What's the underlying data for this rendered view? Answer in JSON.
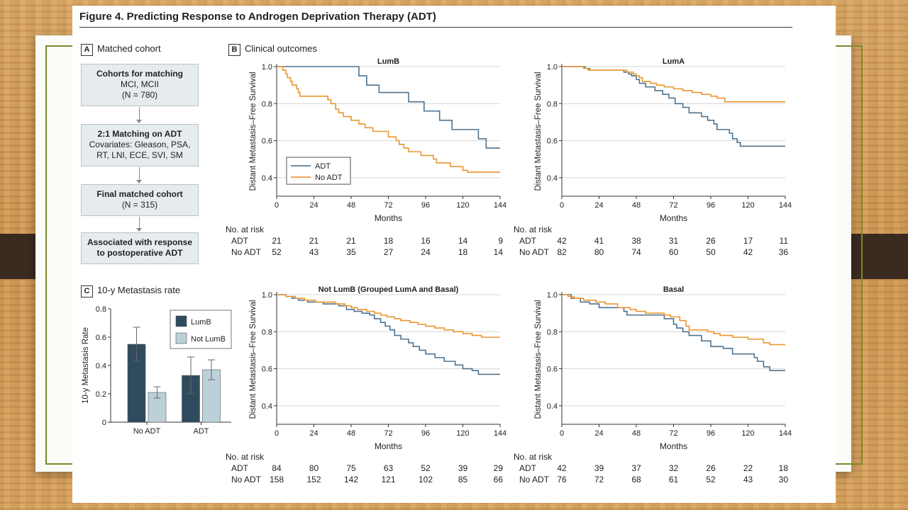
{
  "figure_title": "Figure 4. Predicting Response to Androgen Deprivation Therapy (ADT)",
  "panel_a": {
    "letter": "A",
    "label": "Matched cohort",
    "boxes": [
      {
        "title": "Cohorts for matching",
        "lines": [
          "MCI, MCII",
          "(N = 780)"
        ]
      },
      {
        "title": "2:1 Matching on ADT",
        "lines": [
          "Covariates:  Gleason, PSA,",
          "RT, LNI, ECE, SVI, SM"
        ]
      },
      {
        "title": "Final matched cohort",
        "lines": [
          "(N = 315)"
        ]
      },
      {
        "title": "Associated with response",
        "lines": [
          "to postoperative ADT"
        ]
      }
    ]
  },
  "panel_b": {
    "letter": "B",
    "label": "Clinical outcomes"
  },
  "panel_c": {
    "letter": "C",
    "label": "10-y Metastasis rate"
  },
  "colors": {
    "adt": "#4f7390",
    "no_adt": "#ea9630",
    "lumb_bar": "#2f4b5e",
    "notlumb_bar": "#bcd0da",
    "grid": "#d5d5d5"
  },
  "chart_data": [
    {
      "type": "line",
      "title": "LumB",
      "xlabel": "Months",
      "ylabel": "Distant Metastasis–Free Survival",
      "xlim": [
        0,
        144
      ],
      "ylim": [
        0.3,
        1.0
      ],
      "xticks": [
        0,
        24,
        48,
        72,
        96,
        120,
        144
      ],
      "yticks": [
        0.4,
        0.6,
        0.8,
        1.0
      ],
      "legend": "bottom-left",
      "series": [
        {
          "name": "ADT",
          "color": "adt",
          "steps": [
            [
              0,
              1.0
            ],
            [
              53,
              0.95
            ],
            [
              58,
              0.9
            ],
            [
              66,
              0.86
            ],
            [
              85,
              0.81
            ],
            [
              95,
              0.76
            ],
            [
              105,
              0.71
            ],
            [
              113,
              0.66
            ],
            [
              130,
              0.61
            ],
            [
              135,
              0.56
            ],
            [
              144,
              0.56
            ]
          ]
        },
        {
          "name": "No ADT",
          "color": "no_adt",
          "steps": [
            [
              0,
              1.0
            ],
            [
              4,
              0.98
            ],
            [
              6,
              0.96
            ],
            [
              7,
              0.94
            ],
            [
              9,
              0.92
            ],
            [
              10,
              0.9
            ],
            [
              13,
              0.88
            ],
            [
              14,
              0.86
            ],
            [
              15,
              0.84
            ],
            [
              33,
              0.82
            ],
            [
              35,
              0.8
            ],
            [
              38,
              0.77
            ],
            [
              40,
              0.75
            ],
            [
              43,
              0.73
            ],
            [
              48,
              0.71
            ],
            [
              53,
              0.69
            ],
            [
              57,
              0.67
            ],
            [
              62,
              0.65
            ],
            [
              72,
              0.62
            ],
            [
              77,
              0.6
            ],
            [
              79,
              0.58
            ],
            [
              82,
              0.56
            ],
            [
              85,
              0.54
            ],
            [
              93,
              0.52
            ],
            [
              101,
              0.5
            ],
            [
              103,
              0.48
            ],
            [
              112,
              0.46
            ],
            [
              120,
              0.44
            ],
            [
              123,
              0.43
            ],
            [
              144,
              0.43
            ]
          ]
        }
      ],
      "risk": {
        "header": "No. at risk",
        "rows": [
          {
            "label": "ADT",
            "values": [
              "21",
              "21",
              "21",
              "18",
              "16",
              "14",
              "9"
            ]
          },
          {
            "label": "No ADT",
            "values": [
              "52",
              "43",
              "35",
              "27",
              "24",
              "18",
              "14"
            ]
          }
        ]
      }
    },
    {
      "type": "line",
      "title": "LumA",
      "xlabel": "Months",
      "ylabel": "Distant Metastasis–Free Survival",
      "xlim": [
        0,
        144
      ],
      "ylim": [
        0.3,
        1.0
      ],
      "xticks": [
        0,
        24,
        48,
        72,
        96,
        120,
        144
      ],
      "yticks": [
        0.4,
        0.6,
        0.8,
        1.0
      ],
      "series": [
        {
          "name": "ADT",
          "color": "adt",
          "steps": [
            [
              0,
              1.0
            ],
            [
              15,
              0.99
            ],
            [
              18,
              0.98
            ],
            [
              40,
              0.97
            ],
            [
              43,
              0.96
            ],
            [
              45,
              0.95
            ],
            [
              48,
              0.93
            ],
            [
              50,
              0.91
            ],
            [
              54,
              0.89
            ],
            [
              60,
              0.87
            ],
            [
              65,
              0.85
            ],
            [
              69,
              0.83
            ],
            [
              73,
              0.8
            ],
            [
              78,
              0.78
            ],
            [
              82,
              0.75
            ],
            [
              90,
              0.73
            ],
            [
              94,
              0.71
            ],
            [
              98,
              0.69
            ],
            [
              100,
              0.66
            ],
            [
              108,
              0.64
            ],
            [
              110,
              0.61
            ],
            [
              113,
              0.59
            ],
            [
              115,
              0.57
            ],
            [
              144,
              0.57
            ]
          ]
        },
        {
          "name": "No ADT",
          "color": "no_adt",
          "steps": [
            [
              0,
              1.0
            ],
            [
              14,
              0.99
            ],
            [
              17,
              0.98
            ],
            [
              42,
              0.97
            ],
            [
              46,
              0.96
            ],
            [
              48,
              0.95
            ],
            [
              50,
              0.94
            ],
            [
              52,
              0.92
            ],
            [
              57,
              0.91
            ],
            [
              61,
              0.9
            ],
            [
              66,
              0.89
            ],
            [
              72,
              0.88
            ],
            [
              78,
              0.87
            ],
            [
              84,
              0.86
            ],
            [
              90,
              0.85
            ],
            [
              96,
              0.84
            ],
            [
              100,
              0.83
            ],
            [
              105,
              0.81
            ],
            [
              144,
              0.81
            ]
          ]
        }
      ],
      "risk": {
        "header": "No. at risk",
        "rows": [
          {
            "label": "ADT",
            "values": [
              "42",
              "41",
              "38",
              "31",
              "26",
              "17",
              "11"
            ]
          },
          {
            "label": "No ADT",
            "values": [
              "82",
              "80",
              "74",
              "60",
              "50",
              "42",
              "36"
            ]
          }
        ]
      }
    },
    {
      "type": "line",
      "title": "Not LumB (Grouped LumA and Basal)",
      "xlabel": "Months",
      "ylabel": "Distant Metastasis–Free Survival",
      "xlim": [
        0,
        144
      ],
      "ylim": [
        0.3,
        1.0
      ],
      "xticks": [
        0,
        24,
        48,
        72,
        96,
        120,
        144
      ],
      "yticks": [
        0.4,
        0.6,
        0.8,
        1.0
      ],
      "series": [
        {
          "name": "ADT",
          "color": "adt",
          "steps": [
            [
              0,
              1.0
            ],
            [
              6,
              0.99
            ],
            [
              10,
              0.98
            ],
            [
              14,
              0.97
            ],
            [
              20,
              0.96
            ],
            [
              30,
              0.95
            ],
            [
              40,
              0.94
            ],
            [
              45,
              0.92
            ],
            [
              50,
              0.91
            ],
            [
              55,
              0.9
            ],
            [
              60,
              0.89
            ],
            [
              63,
              0.87
            ],
            [
              67,
              0.85
            ],
            [
              70,
              0.83
            ],
            [
              73,
              0.81
            ],
            [
              76,
              0.78
            ],
            [
              80,
              0.76
            ],
            [
              85,
              0.74
            ],
            [
              88,
              0.72
            ],
            [
              92,
              0.7
            ],
            [
              96,
              0.68
            ],
            [
              102,
              0.66
            ],
            [
              108,
              0.64
            ],
            [
              115,
              0.62
            ],
            [
              120,
              0.6
            ],
            [
              126,
              0.59
            ],
            [
              130,
              0.57
            ],
            [
              144,
              0.57
            ]
          ]
        },
        {
          "name": "No ADT",
          "color": "no_adt",
          "steps": [
            [
              0,
              1.0
            ],
            [
              6,
              0.99
            ],
            [
              12,
              0.98
            ],
            [
              18,
              0.97
            ],
            [
              25,
              0.96
            ],
            [
              38,
              0.95
            ],
            [
              44,
              0.94
            ],
            [
              48,
              0.93
            ],
            [
              52,
              0.92
            ],
            [
              58,
              0.91
            ],
            [
              63,
              0.9
            ],
            [
              67,
              0.89
            ],
            [
              71,
              0.88
            ],
            [
              76,
              0.87
            ],
            [
              80,
              0.86
            ],
            [
              86,
              0.85
            ],
            [
              91,
              0.84
            ],
            [
              96,
              0.83
            ],
            [
              102,
              0.82
            ],
            [
              108,
              0.81
            ],
            [
              114,
              0.8
            ],
            [
              120,
              0.79
            ],
            [
              126,
              0.78
            ],
            [
              132,
              0.77
            ],
            [
              144,
              0.77
            ]
          ]
        }
      ],
      "risk": {
        "header": "No. at risk",
        "rows": [
          {
            "label": "ADT",
            "values": [
              "84",
              "80",
              "75",
              "63",
              "52",
              "39",
              "29"
            ]
          },
          {
            "label": "No ADT",
            "values": [
              "158",
              "152",
              "142",
              "121",
              "102",
              "85",
              "66"
            ]
          }
        ]
      }
    },
    {
      "type": "line",
      "title": "Basal",
      "xlabel": "Months",
      "ylabel": "Distant Metastasis–Free Survival",
      "xlim": [
        0,
        144
      ],
      "ylim": [
        0.3,
        1.0
      ],
      "xticks": [
        0,
        24,
        48,
        72,
        96,
        120,
        144
      ],
      "yticks": [
        0.4,
        0.6,
        0.8,
        1.0
      ],
      "series": [
        {
          "name": "ADT",
          "color": "adt",
          "steps": [
            [
              0,
              1.0
            ],
            [
              6,
              0.98
            ],
            [
              12,
              0.96
            ],
            [
              18,
              0.95
            ],
            [
              24,
              0.93
            ],
            [
              40,
              0.91
            ],
            [
              42,
              0.89
            ],
            [
              48,
              0.89
            ],
            [
              66,
              0.87
            ],
            [
              72,
              0.84
            ],
            [
              74,
              0.82
            ],
            [
              78,
              0.8
            ],
            [
              82,
              0.78
            ],
            [
              90,
              0.75
            ],
            [
              96,
              0.72
            ],
            [
              104,
              0.71
            ],
            [
              110,
              0.68
            ],
            [
              124,
              0.66
            ],
            [
              126,
              0.64
            ],
            [
              130,
              0.61
            ],
            [
              134,
              0.59
            ],
            [
              144,
              0.59
            ]
          ]
        },
        {
          "name": "No ADT",
          "color": "no_adt",
          "steps": [
            [
              0,
              1.0
            ],
            [
              4,
              0.99
            ],
            [
              8,
              0.98
            ],
            [
              14,
              0.97
            ],
            [
              22,
              0.96
            ],
            [
              28,
              0.95
            ],
            [
              36,
              0.93
            ],
            [
              44,
              0.92
            ],
            [
              48,
              0.91
            ],
            [
              54,
              0.9
            ],
            [
              66,
              0.89
            ],
            [
              70,
              0.88
            ],
            [
              76,
              0.86
            ],
            [
              80,
              0.83
            ],
            [
              82,
              0.81
            ],
            [
              94,
              0.8
            ],
            [
              98,
              0.79
            ],
            [
              102,
              0.78
            ],
            [
              110,
              0.77
            ],
            [
              120,
              0.76
            ],
            [
              130,
              0.74
            ],
            [
              134,
              0.73
            ],
            [
              144,
              0.73
            ]
          ]
        }
      ],
      "risk": {
        "header": "No. at risk",
        "rows": [
          {
            "label": "ADT",
            "values": [
              "42",
              "39",
              "37",
              "32",
              "26",
              "22",
              "18"
            ]
          },
          {
            "label": "No ADT",
            "values": [
              "76",
              "72",
              "68",
              "61",
              "52",
              "43",
              "30"
            ]
          }
        ]
      }
    },
    {
      "type": "bar",
      "categories": [
        "No ADT",
        "ADT"
      ],
      "ylabel": "10-y Metastasis Rate",
      "ylim": [
        0,
        0.8
      ],
      "yticks": [
        0,
        0.2,
        0.4,
        0.6,
        0.8
      ],
      "legend": "top-right",
      "series": [
        {
          "name": "LumB",
          "color": "lumb_bar",
          "values": [
            0.55,
            0.33
          ],
          "ci": [
            [
              0.43,
              0.67
            ],
            [
              0.2,
              0.46
            ]
          ]
        },
        {
          "name": "Not LumB",
          "color": "notlumb_bar",
          "values": [
            0.21,
            0.37
          ],
          "ci": [
            [
              0.17,
              0.25
            ],
            [
              0.3,
              0.44
            ]
          ]
        }
      ]
    }
  ]
}
